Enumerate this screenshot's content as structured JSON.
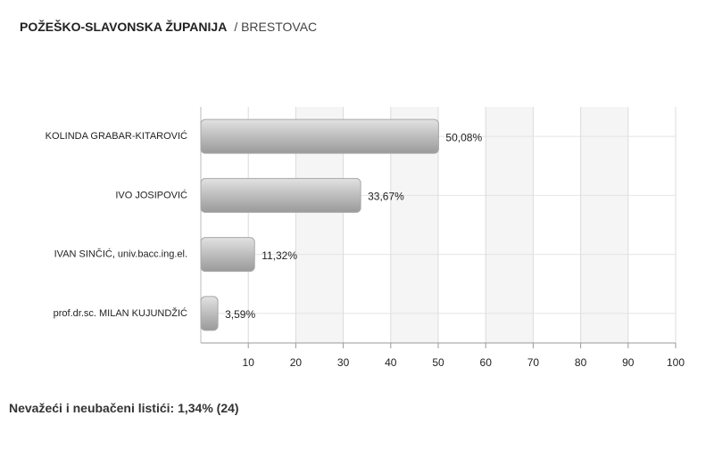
{
  "chart_data": {
    "type": "bar",
    "orientation": "horizontal",
    "title": "POŽEŠKO-SLAVONSKA ŽUPANIJA",
    "subtitle": "/ BRESTOVAC",
    "categories": [
      "KOLINDA GRABAR-KITAROVIĆ",
      "IVO JOSIPOVIĆ",
      "IVAN SINČIĆ, univ.bacc.ing.el.",
      "prof.dr.sc. MILAN KUJUNDŽIĆ"
    ],
    "values": [
      50.08,
      33.67,
      11.32,
      3.59
    ],
    "value_labels": [
      "50,08%",
      "33,67%",
      "11,32%",
      "3,59%"
    ],
    "color": "#b5b5b5",
    "xlim": [
      0,
      100
    ],
    "xticks": [
      10,
      20,
      30,
      40,
      50,
      60,
      70,
      80,
      90,
      100
    ],
    "grid": true,
    "note": "Nevažeći i neubačeni listići: 1,34% (24)"
  }
}
